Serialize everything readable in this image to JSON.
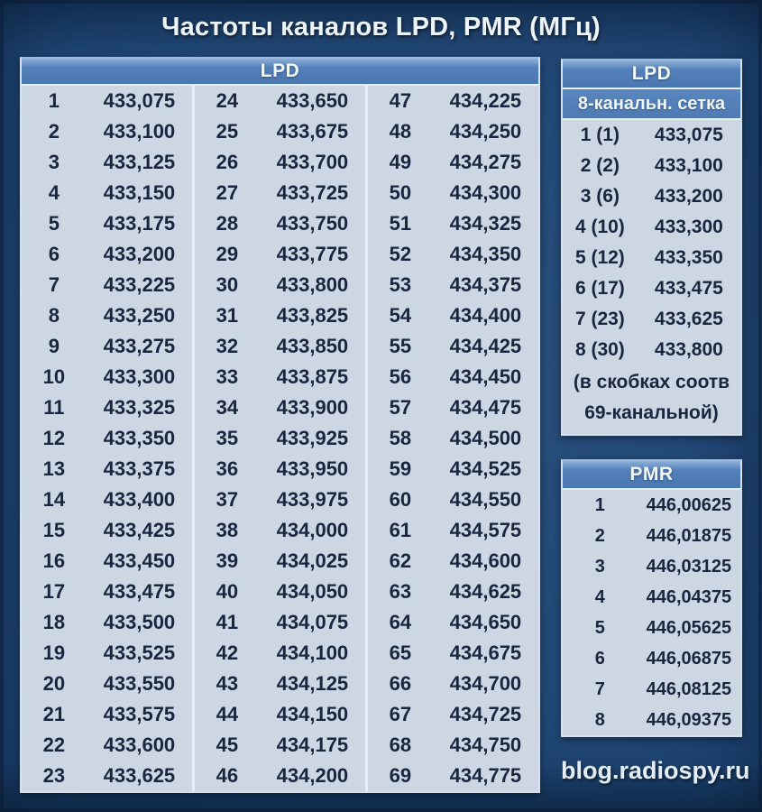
{
  "title": "Частоты каналов LPD, PMR (МГц)",
  "lpd69": {
    "header": "LPD",
    "columns": [
      {
        "rows": [
          {
            "ch": "1",
            "freq": "433,075"
          },
          {
            "ch": "2",
            "freq": "433,100"
          },
          {
            "ch": "3",
            "freq": "433,125"
          },
          {
            "ch": "4",
            "freq": "433,150"
          },
          {
            "ch": "5",
            "freq": "433,175"
          },
          {
            "ch": "6",
            "freq": "433,200"
          },
          {
            "ch": "7",
            "freq": "433,225"
          },
          {
            "ch": "8",
            "freq": "433,250"
          },
          {
            "ch": "9",
            "freq": "433,275"
          },
          {
            "ch": "10",
            "freq": "433,300"
          },
          {
            "ch": "11",
            "freq": "433,325"
          },
          {
            "ch": "12",
            "freq": "433,350"
          },
          {
            "ch": "13",
            "freq": "433,375"
          },
          {
            "ch": "14",
            "freq": "433,400"
          },
          {
            "ch": "15",
            "freq": "433,425"
          },
          {
            "ch": "16",
            "freq": "433,450"
          },
          {
            "ch": "17",
            "freq": "433,475"
          },
          {
            "ch": "18",
            "freq": "433,500"
          },
          {
            "ch": "19",
            "freq": "433,525"
          },
          {
            "ch": "20",
            "freq": "433,550"
          },
          {
            "ch": "21",
            "freq": "433,575"
          },
          {
            "ch": "22",
            "freq": "433,600"
          },
          {
            "ch": "23",
            "freq": "433,625"
          }
        ]
      },
      {
        "rows": [
          {
            "ch": "24",
            "freq": "433,650"
          },
          {
            "ch": "25",
            "freq": "433,675"
          },
          {
            "ch": "26",
            "freq": "433,700"
          },
          {
            "ch": "27",
            "freq": "433,725"
          },
          {
            "ch": "28",
            "freq": "433,750"
          },
          {
            "ch": "29",
            "freq": "433,775"
          },
          {
            "ch": "30",
            "freq": "433,800"
          },
          {
            "ch": "31",
            "freq": "433,825"
          },
          {
            "ch": "32",
            "freq": "433,850"
          },
          {
            "ch": "33",
            "freq": "433,875"
          },
          {
            "ch": "34",
            "freq": "433,900"
          },
          {
            "ch": "35",
            "freq": "433,925"
          },
          {
            "ch": "36",
            "freq": "433,950"
          },
          {
            "ch": "37",
            "freq": "433,975"
          },
          {
            "ch": "38",
            "freq": "434,000"
          },
          {
            "ch": "39",
            "freq": "434,025"
          },
          {
            "ch": "40",
            "freq": "434,050"
          },
          {
            "ch": "41",
            "freq": "434,075"
          },
          {
            "ch": "42",
            "freq": "434,100"
          },
          {
            "ch": "43",
            "freq": "434,125"
          },
          {
            "ch": "44",
            "freq": "434,150"
          },
          {
            "ch": "45",
            "freq": "434,175"
          },
          {
            "ch": "46",
            "freq": "434,200"
          }
        ]
      },
      {
        "rows": [
          {
            "ch": "47",
            "freq": "434,225"
          },
          {
            "ch": "48",
            "freq": "434,250"
          },
          {
            "ch": "49",
            "freq": "434,275"
          },
          {
            "ch": "50",
            "freq": "434,300"
          },
          {
            "ch": "51",
            "freq": "434,325"
          },
          {
            "ch": "52",
            "freq": "434,350"
          },
          {
            "ch": "53",
            "freq": "434,375"
          },
          {
            "ch": "54",
            "freq": "434,400"
          },
          {
            "ch": "55",
            "freq": "434,425"
          },
          {
            "ch": "56",
            "freq": "434,450"
          },
          {
            "ch": "57",
            "freq": "434,475"
          },
          {
            "ch": "58",
            "freq": "434,500"
          },
          {
            "ch": "59",
            "freq": "434,525"
          },
          {
            "ch": "60",
            "freq": "434,550"
          },
          {
            "ch": "61",
            "freq": "434,575"
          },
          {
            "ch": "62",
            "freq": "434,600"
          },
          {
            "ch": "63",
            "freq": "434,625"
          },
          {
            "ch": "64",
            "freq": "434,650"
          },
          {
            "ch": "65",
            "freq": "434,675"
          },
          {
            "ch": "66",
            "freq": "434,700"
          },
          {
            "ch": "67",
            "freq": "434,725"
          },
          {
            "ch": "68",
            "freq": "434,750"
          },
          {
            "ch": "69",
            "freq": "434,775"
          }
        ]
      }
    ]
  },
  "lpd8": {
    "header": "LPD",
    "subheader": "8-канальн. сетка",
    "rows": [
      {
        "ch": "1 (1)",
        "freq": "433,075"
      },
      {
        "ch": "2 (2)",
        "freq": "433,100"
      },
      {
        "ch": "3 (6)",
        "freq": "433,200"
      },
      {
        "ch": "4 (10)",
        "freq": "433,300"
      },
      {
        "ch": "5 (12)",
        "freq": "433,350"
      },
      {
        "ch": "6 (17)",
        "freq": "433,475"
      },
      {
        "ch": "7 (23)",
        "freq": "433,625"
      },
      {
        "ch": "8 (30)",
        "freq": "433,800"
      }
    ],
    "note_lines": [
      "(в скобках соотв",
      "69-канальной)"
    ]
  },
  "pmr": {
    "header": "PMR",
    "rows": [
      {
        "ch": "1",
        "freq": "446,00625"
      },
      {
        "ch": "2",
        "freq": "446,01875"
      },
      {
        "ch": "3",
        "freq": "446,03125"
      },
      {
        "ch": "4",
        "freq": "446,04375"
      },
      {
        "ch": "5",
        "freq": "446,05625"
      },
      {
        "ch": "6",
        "freq": "446,06875"
      },
      {
        "ch": "7",
        "freq": "446,08125"
      },
      {
        "ch": "8",
        "freq": "446,09375"
      }
    ]
  },
  "footer": {
    "site": "blog.radiospy.ru"
  },
  "colors": {
    "background": "#1e4574",
    "header_blue": "#4d7ab4",
    "cell_background": "#cdd7e4",
    "text_dark": "#19263f",
    "text_light": "#f4f9fe"
  }
}
